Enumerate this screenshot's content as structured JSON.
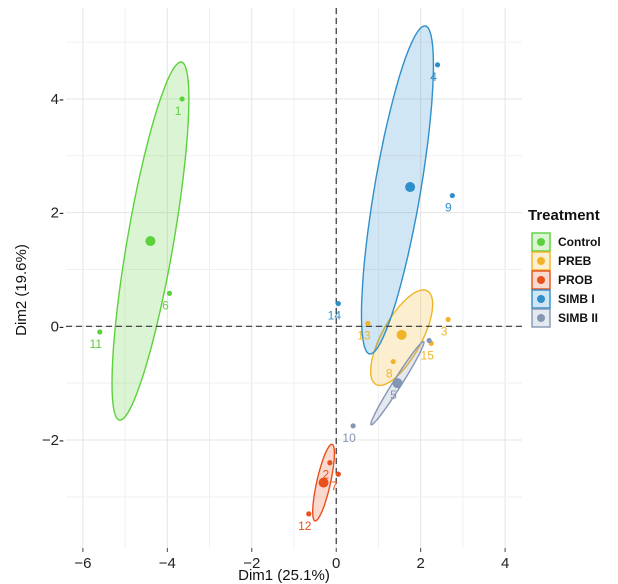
{
  "chart_data": {
    "type": "scatter",
    "xlabel": "Dim1 (25.1%)",
    "ylabel": "Dim2 (19.6%)",
    "xlim": [
      -6.4,
      4.4
    ],
    "ylim": [
      -3.9,
      5.6
    ],
    "x_ticks": [
      -6,
      -4,
      -2,
      0,
      2,
      4
    ],
    "y_ticks": [
      4,
      2,
      0,
      -2
    ],
    "x_tick_labels": [
      "−6",
      "−4",
      "−2",
      "0",
      "2",
      "4"
    ],
    "y_tick_labels": [
      "4-",
      "2-",
      "0-",
      "−2-"
    ],
    "reference_lines": {
      "x": 0,
      "y": 0,
      "style": "dashed"
    },
    "grid": true,
    "legend": {
      "title": "Treatment",
      "position": "right"
    },
    "series": [
      {
        "name": "Control",
        "color": "#5cd13c",
        "centroid": [
          -4.4,
          1.5
        ],
        "points": [
          {
            "label": "1",
            "x": -3.65,
            "y": 4.0
          },
          {
            "label": "6",
            "x": -3.95,
            "y": 0.58
          },
          {
            "label": "11",
            "x": -5.6,
            "y": -0.1
          }
        ],
        "ellipse": {
          "cx": -4.4,
          "cy": 1.5,
          "rx": 3.5,
          "ry": 1.0,
          "angle": 63
        }
      },
      {
        "name": "PREB",
        "color": "#f0b429",
        "centroid": [
          1.55,
          -0.15
        ],
        "points": [
          {
            "label": "3",
            "x": 2.65,
            "y": 0.12
          },
          {
            "label": "13",
            "x": 0.75,
            "y": 0.05
          },
          {
            "label": "15",
            "x": 2.25,
            "y": -0.3
          },
          {
            "label": "8",
            "x": 1.35,
            "y": -0.62
          }
        ],
        "ellipse": {
          "cx": 1.55,
          "cy": -0.2,
          "rx": 1.6,
          "ry": 0.55,
          "angle": 25
        }
      },
      {
        "name": "PROB",
        "color": "#e8501e",
        "centroid": [
          -0.3,
          -2.75
        ],
        "points": [
          {
            "label": "2",
            "x": -0.15,
            "y": -2.4
          },
          {
            "label": "7",
            "x": 0.05,
            "y": -2.6
          },
          {
            "label": "12",
            "x": -0.65,
            "y": -3.3
          }
        ],
        "ellipse": {
          "cx": -0.3,
          "cy": -2.75,
          "rx": 0.8,
          "ry": 0.28,
          "angle": 55
        }
      },
      {
        "name": "SIMB I",
        "color": "#2e8fcb",
        "centroid": [
          1.75,
          2.45
        ],
        "points": [
          {
            "label": "4",
            "x": 2.4,
            "y": 4.6
          },
          {
            "label": "9",
            "x": 2.75,
            "y": 2.3
          },
          {
            "label": "14",
            "x": 0.05,
            "y": 0.4
          }
        ],
        "ellipse": {
          "cx": 1.45,
          "cy": 2.4,
          "rx": 3.2,
          "ry": 1.0,
          "angle": 63
        }
      },
      {
        "name": "SIMB II",
        "color": "#8396b4",
        "centroid": [
          1.45,
          -1.0
        ],
        "points": [
          {
            "label": "10",
            "x": 0.4,
            "y": -1.75
          },
          {
            "label": "5",
            "x": 1.45,
            "y": -1.0
          },
          {
            "label": "",
            "x": 2.2,
            "y": -0.25
          }
        ],
        "ellipse": {
          "cx": 1.45,
          "cy": -1.0,
          "rx": 1.45,
          "ry": 0.12,
          "angle": 30
        }
      }
    ]
  }
}
